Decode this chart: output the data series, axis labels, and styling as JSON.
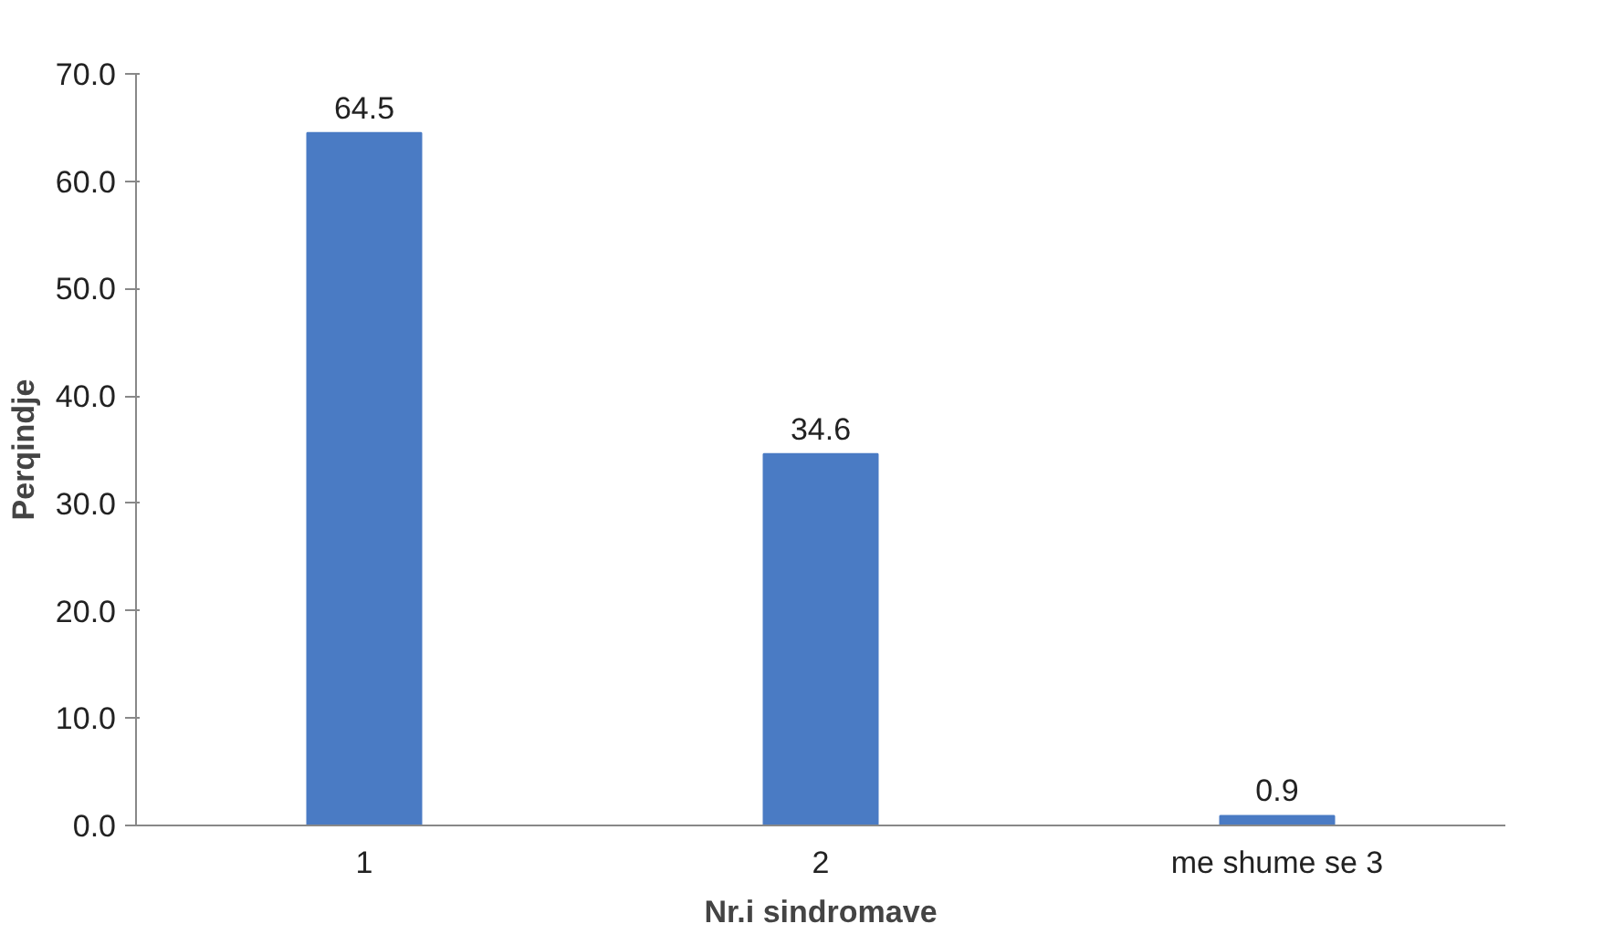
{
  "chart_data": {
    "type": "bar",
    "xlabel": "Nr.i sindromave",
    "ylabel": "Perqindje",
    "categories": [
      "1",
      "2",
      "me shume se 3"
    ],
    "values": [
      64.5,
      34.6,
      0.9
    ],
    "color": "#4a7bc4",
    "ylim": [
      0,
      70
    ],
    "yticks": [
      {
        "value": 0,
        "label": "0.0"
      },
      {
        "value": 10,
        "label": "10.0"
      },
      {
        "value": 20,
        "label": "20.0"
      },
      {
        "value": 30,
        "label": "30.0"
      },
      {
        "value": 40,
        "label": "40.0"
      },
      {
        "value": 50,
        "label": "50.0"
      },
      {
        "value": 60,
        "label": "60.0"
      },
      {
        "value": 70,
        "label": "70.0"
      }
    ],
    "data_labels": true,
    "grid": false
  }
}
